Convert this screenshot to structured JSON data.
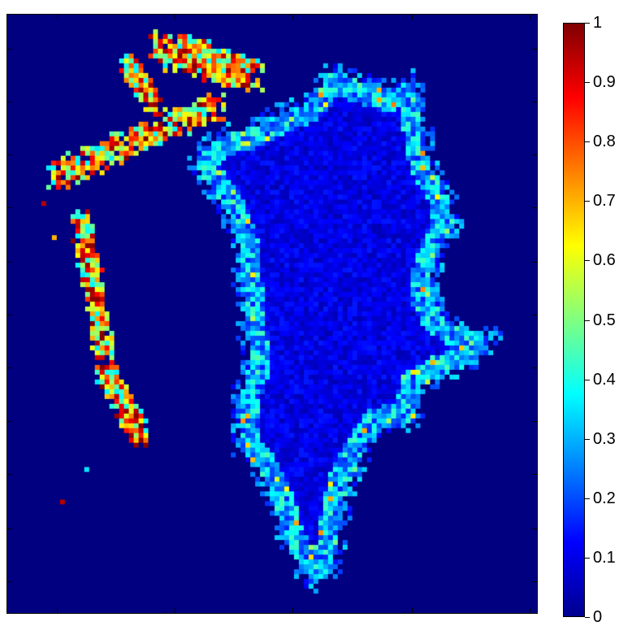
{
  "chart_data": {
    "type": "heatmap",
    "title": "",
    "xlabel": "",
    "ylabel": "",
    "colormap": "jet",
    "clim": [
      0,
      1
    ],
    "colorbar": {
      "ticks": [
        "0",
        "0.1",
        "0.2",
        "0.3",
        "0.4",
        "0.5",
        "0.6",
        "0.7",
        "0.8",
        "0.9",
        "1"
      ],
      "placement": "right"
    },
    "background_value": 0,
    "description_regions": [
      {
        "name": "greenland-ice-margin",
        "typical_value_range": [
          0.1,
          0.5
        ]
      },
      {
        "name": "ellesmere-baffin-coast",
        "typical_value_range": [
          0.4,
          1.0
        ]
      }
    ]
  }
}
